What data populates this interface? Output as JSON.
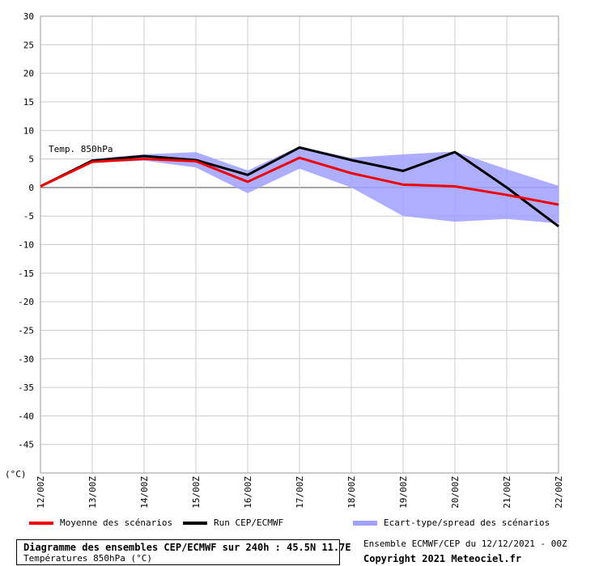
{
  "chart_data": {
    "type": "line",
    "ylabel": "(°C)",
    "ylim": [
      -50,
      30
    ],
    "yticks": [
      30,
      25,
      20,
      15,
      10,
      5,
      0,
      -5,
      -10,
      -15,
      -20,
      -25,
      -30,
      -35,
      -40,
      -45
    ],
    "categories": [
      "12/00Z",
      "13/00Z",
      "14/00Z",
      "15/00Z",
      "16/00Z",
      "17/00Z",
      "18/00Z",
      "19/00Z",
      "20/00Z",
      "21/00Z",
      "22/00Z"
    ],
    "annotation": "Temp. 850hPa",
    "series": [
      {
        "name": "Moyenne des scénarios",
        "color": "#ee0000",
        "values": [
          0.2,
          4.5,
          5.0,
          4.6,
          1.0,
          5.2,
          2.5,
          0.5,
          0.2,
          -1.3,
          -3.0
        ]
      },
      {
        "name": "Run CEP/ECMWF",
        "color": "#000000",
        "values": [
          0.2,
          4.7,
          5.5,
          4.8,
          2.2,
          7.0,
          4.8,
          2.9,
          6.2,
          0.0,
          -6.8
        ]
      }
    ],
    "spread": {
      "name": "Ecart-type/spread des scénarios",
      "color": "#a0a0ff",
      "upper": [
        0.2,
        5.0,
        5.8,
        6.2,
        3.0,
        7.2,
        5.2,
        5.8,
        6.3,
        3.2,
        0.3
      ],
      "lower": [
        0.2,
        4.3,
        4.7,
        3.5,
        -1.0,
        3.3,
        0.0,
        -5.0,
        -6.0,
        -5.5,
        -6.3
      ]
    },
    "grid": true
  },
  "footer": {
    "title": "Diagramme des ensembles CEP/ECMWF sur 240h : 45.5N 11.7E",
    "subtitle": "Températures 850hPa (°C)",
    "run_info": "Ensemble ECMWF/CEP du 12/12/2021 - 00Z",
    "copyright": "Copyright 2021 Meteociel.fr"
  }
}
